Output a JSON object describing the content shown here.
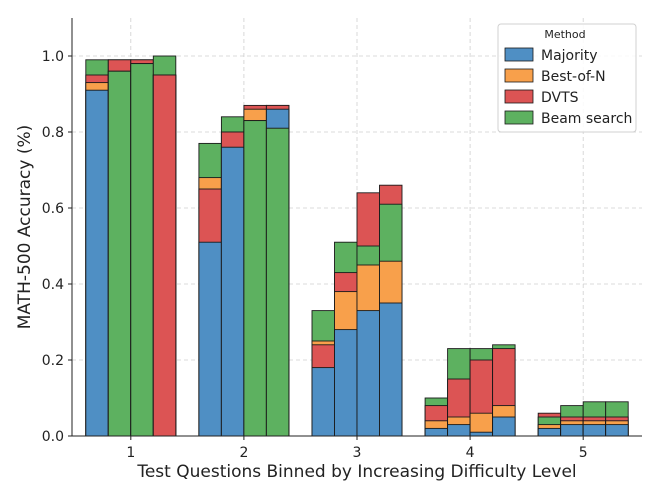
{
  "chart_data": {
    "type": "bar",
    "subtype": "stacked-grouped",
    "title": "",
    "xlabel": "Test Questions Binned by Increasing Difficulty Level",
    "ylabel": "MATH-500 Accuracy (%)",
    "ylim": [
      0,
      1.1
    ],
    "yticks": [
      "0.0",
      "0.2",
      "0.4",
      "0.6",
      "0.8",
      "1.0"
    ],
    "categories": [
      "1",
      "2",
      "3",
      "4",
      "5"
    ],
    "grid": true,
    "legend": {
      "title": "Method",
      "position": "top-right"
    },
    "group_labels_note": "",
    "series": [
      {
        "name": "Majority",
        "color": "#4f8fc4",
        "values": [
          [
            0.91,
            0.96,
            0.98,
            0.95
          ],
          [
            0.51,
            0.76,
            0.83,
            0.86
          ],
          [
            0.18,
            0.28,
            0.33,
            0.35
          ],
          [
            0.02,
            0.03,
            0.01,
            0.05
          ],
          [
            0.02,
            0.03,
            0.03,
            0.03
          ]
        ]
      },
      {
        "name": "Best-of-N",
        "color": "#f8a04b",
        "values": [
          [
            0.93,
            0.99,
            0.99,
            0.95
          ],
          [
            0.68,
            0.8,
            0.86,
            0.87
          ],
          [
            0.25,
            0.38,
            0.45,
            0.46
          ],
          [
            0.04,
            0.05,
            0.06,
            0.08
          ],
          [
            0.03,
            0.04,
            0.04,
            0.04
          ]
        ]
      },
      {
        "name": "DVTS",
        "color": "#dc5454",
        "values": [
          [
            0.95,
            0.99,
            0.99,
            0.95
          ],
          [
            0.65,
            0.8,
            0.87,
            0.87
          ],
          [
            0.24,
            0.43,
            0.64,
            0.66
          ],
          [
            0.08,
            0.15,
            0.2,
            0.23
          ],
          [
            0.06,
            0.05,
            0.05,
            0.05
          ]
        ]
      },
      {
        "name": "Beam search",
        "color": "#5db160",
        "values": [
          [
            0.99,
            0.96,
            0.98,
            1.0
          ],
          [
            0.77,
            0.84,
            0.83,
            0.81
          ],
          [
            0.33,
            0.51,
            0.5,
            0.61
          ],
          [
            0.1,
            0.23,
            0.23,
            0.24
          ],
          [
            0.05,
            0.08,
            0.09,
            0.09
          ]
        ]
      }
    ]
  }
}
